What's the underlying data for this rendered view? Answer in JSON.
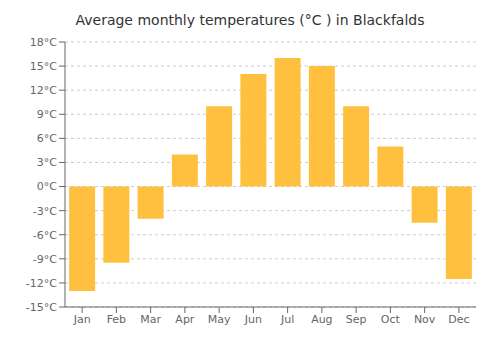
{
  "chart_data": {
    "type": "bar",
    "title": "Average monthly temperatures (°C ) in Blackfalds",
    "categories": [
      "Jan",
      "Feb",
      "Mar",
      "Apr",
      "May",
      "Jun",
      "Jul",
      "Aug",
      "Sep",
      "Oct",
      "Nov",
      "Dec"
    ],
    "values": [
      -13,
      -9.5,
      -4,
      4,
      10,
      14,
      16,
      15,
      10,
      5,
      -4.5,
      -11.5
    ],
    "color": "#FFC040",
    "ylim": [
      -15,
      18
    ],
    "yticks": [
      {
        "value": -15,
        "label": "-15°C"
      },
      {
        "value": -12,
        "label": "-12°C"
      },
      {
        "value": -9,
        "label": "-9°C"
      },
      {
        "value": -6,
        "label": "-6°C"
      },
      {
        "value": -3,
        "label": "-3°C"
      },
      {
        "value": 0,
        "label": "0°C"
      },
      {
        "value": 3,
        "label": "3°C"
      },
      {
        "value": 6,
        "label": "6°C"
      },
      {
        "value": 9,
        "label": "9°C"
      },
      {
        "value": 12,
        "label": "12°C"
      },
      {
        "value": 15,
        "label": "15°C"
      },
      {
        "value": 18,
        "label": "18°C"
      }
    ],
    "grid": true
  }
}
